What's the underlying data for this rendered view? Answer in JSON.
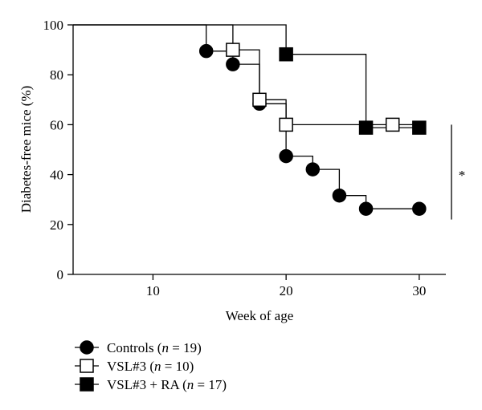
{
  "chart_data": {
    "type": "line",
    "step": true,
    "xlabel": "Week of age",
    "ylabel": "Diabetes-free mice (%)",
    "xlim": [
      4,
      32
    ],
    "ylim": [
      0,
      100
    ],
    "xticks": [
      10,
      20,
      30
    ],
    "yticks": [
      0,
      20,
      40,
      60,
      80,
      100
    ],
    "grid": false,
    "legend_position": "bottom-left",
    "series": [
      {
        "name": "Controls",
        "legend_prefix": "Controls (",
        "legend_n": "n",
        "legend_suffix": " = 19)",
        "marker": "circle",
        "marker_fill": "#000000",
        "step_points": [
          [
            4,
            100
          ],
          [
            14,
            100
          ],
          [
            14,
            89.5
          ],
          [
            16,
            89.5
          ],
          [
            16,
            84.2
          ],
          [
            18,
            84.2
          ],
          [
            18,
            68.4
          ],
          [
            20,
            68.4
          ],
          [
            20,
            47.4
          ],
          [
            22,
            47.4
          ],
          [
            22,
            42.1
          ],
          [
            24,
            42.1
          ],
          [
            24,
            31.6
          ],
          [
            26,
            31.6
          ],
          [
            26,
            26.3
          ],
          [
            30,
            26.3
          ]
        ],
        "marker_points": [
          [
            14,
            89.5
          ],
          [
            16,
            84.2
          ],
          [
            18,
            68.4
          ],
          [
            20,
            47.4
          ],
          [
            22,
            42.1
          ],
          [
            24,
            31.6
          ],
          [
            26,
            26.3
          ],
          [
            30,
            26.3
          ]
        ]
      },
      {
        "name": "VSL#3",
        "legend_prefix": "VSL#3 (",
        "legend_n": "n",
        "legend_suffix": " = 10)",
        "marker": "square",
        "marker_fill": "#ffffff",
        "step_points": [
          [
            4,
            100
          ],
          [
            16,
            100
          ],
          [
            16,
            90
          ],
          [
            18,
            90
          ],
          [
            18,
            70
          ],
          [
            20,
            70
          ],
          [
            20,
            60
          ],
          [
            30,
            60
          ]
        ],
        "marker_points": [
          [
            16,
            90
          ],
          [
            18,
            70
          ],
          [
            20,
            60
          ],
          [
            28,
            60
          ]
        ]
      },
      {
        "name": "VSL#3 + RA",
        "legend_prefix": "VSL#3 + RA (",
        "legend_n": "n",
        "legend_suffix": " = 17)",
        "marker": "square",
        "marker_fill": "#000000",
        "step_points": [
          [
            4,
            100
          ],
          [
            20,
            100
          ],
          [
            20,
            88.2
          ],
          [
            26,
            88.2
          ],
          [
            26,
            58.8
          ],
          [
            30,
            58.8
          ]
        ],
        "marker_points": [
          [
            20,
            88.2
          ],
          [
            26,
            58.8
          ],
          [
            30,
            58.8
          ]
        ]
      }
    ],
    "significance": {
      "label": "*",
      "y_range": [
        22,
        60
      ]
    }
  }
}
